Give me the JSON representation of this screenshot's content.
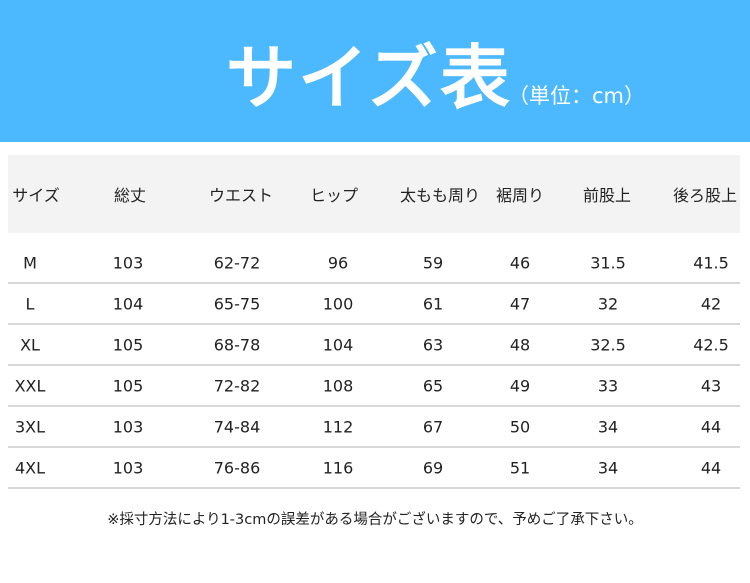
{
  "banner": {
    "title": "サイズ表",
    "unit": "（単位：cm）",
    "color": "#4cb8fe"
  },
  "table": {
    "headers": [
      "サイズ",
      "総丈",
      "ウエスト",
      "ヒップ",
      "太もも周り",
      "裾周り",
      "前股上",
      "後ろ股上"
    ],
    "rows": [
      [
        "M",
        "103",
        "62-72",
        "96",
        "59",
        "46",
        "31.5",
        "41.5"
      ],
      [
        "L",
        "104",
        "65-75",
        "100",
        "61",
        "47",
        "32",
        "42"
      ],
      [
        "XL",
        "105",
        "68-78",
        "104",
        "63",
        "48",
        "32.5",
        "42.5"
      ],
      [
        "XXL",
        "105",
        "72-82",
        "108",
        "65",
        "49",
        "33",
        "43"
      ],
      [
        "3XL",
        "103",
        "74-84",
        "112",
        "67",
        "50",
        "34",
        "44"
      ],
      [
        "4XL",
        "103",
        "76-86",
        "116",
        "69",
        "51",
        "34",
        "44"
      ]
    ]
  },
  "note": "※採寸方法により1-3cmの誤差がある場合がございますので、予めご了承下さい。"
}
